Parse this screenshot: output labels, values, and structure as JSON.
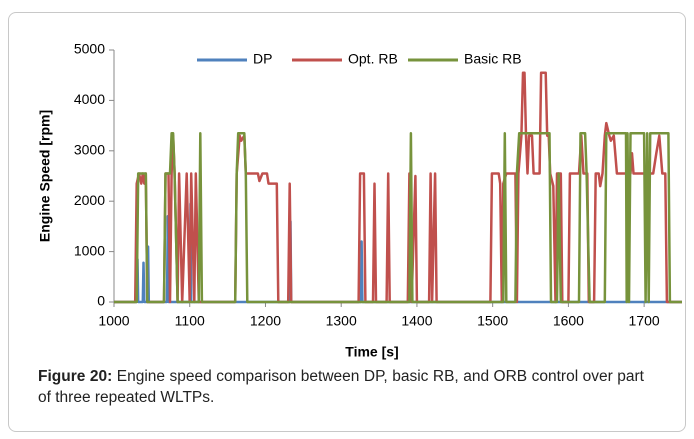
{
  "chart_data": {
    "type": "line",
    "xlabel": "Time [s]",
    "ylabel": "Engine Speed [rpm]",
    "xlim": [
      1000,
      1750
    ],
    "xticks": [
      1000,
      1100,
      1200,
      1300,
      1400,
      1500,
      1600,
      1700
    ],
    "ylim": [
      0,
      5000
    ],
    "yticks": [
      0,
      1000,
      2000,
      3000,
      4000,
      5000
    ],
    "grid": false,
    "legend": "top",
    "series": [
      {
        "name": "DP",
        "color": "#4f81bd",
        "x": [
          1000,
          1030,
          1031,
          1032,
          1038,
          1039,
          1040,
          1044,
          1045,
          1046,
          1070,
          1071,
          1072,
          1100,
          1101,
          1102,
          1232,
          1233,
          1234,
          1326,
          1327,
          1328,
          1750
        ],
        "values": [
          0,
          0,
          850,
          0,
          0,
          780,
          0,
          0,
          1100,
          0,
          0,
          1700,
          0,
          0,
          1950,
          0,
          0,
          1600,
          0,
          0,
          1200,
          0,
          0
        ]
      },
      {
        "name": "Opt. RB",
        "color": "#c0504d",
        "x": [
          1000,
          1028,
          1030,
          1033,
          1036,
          1038,
          1040,
          1042,
          1044,
          1066,
          1068,
          1072,
          1074,
          1076,
          1078,
          1080,
          1084,
          1086,
          1090,
          1096,
          1100,
          1102,
          1106,
          1108,
          1112,
          1160,
          1162,
          1166,
          1168,
          1172,
          1174,
          1190,
          1192,
          1196,
          1202,
          1204,
          1215,
          1217,
          1230,
          1232,
          1234,
          1323,
          1325,
          1330,
          1332,
          1342,
          1344,
          1346,
          1360,
          1362,
          1364,
          1388,
          1390,
          1393,
          1398,
          1400,
          1416,
          1418,
          1420,
          1424,
          1426,
          1497,
          1499,
          1508,
          1510,
          1512,
          1514,
          1518,
          1530,
          1532,
          1534,
          1538,
          1540,
          1542,
          1544,
          1546,
          1548,
          1552,
          1554,
          1562,
          1564,
          1570,
          1572,
          1574,
          1576,
          1580,
          1583,
          1585,
          1590,
          1592,
          1600,
          1602,
          1614,
          1617,
          1620,
          1625,
          1627,
          1634,
          1636,
          1640,
          1642,
          1645,
          1648,
          1650,
          1654,
          1656,
          1660,
          1664,
          1682,
          1684,
          1686,
          1712,
          1716,
          1720,
          1724,
          1728,
          1730,
          1750
        ],
        "values": [
          0,
          0,
          2350,
          2550,
          2350,
          2550,
          2350,
          2550,
          0,
          0,
          2550,
          2550,
          0,
          2550,
          3300,
          2550,
          0,
          2550,
          0,
          2550,
          0,
          2550,
          0,
          2550,
          0,
          0,
          2550,
          3300,
          3200,
          3300,
          2550,
          2550,
          2400,
          2550,
          2550,
          2350,
          2350,
          0,
          0,
          2350,
          0,
          0,
          2550,
          2550,
          0,
          0,
          2350,
          0,
          0,
          2550,
          0,
          0,
          2550,
          0,
          2500,
          0,
          0,
          2550,
          0,
          2550,
          0,
          0,
          2550,
          2550,
          2350,
          0,
          2350,
          2550,
          2550,
          0,
          2550,
          3300,
          4550,
          4550,
          3300,
          2550,
          3300,
          3300,
          2550,
          2550,
          4550,
          4550,
          3300,
          3300,
          2550,
          2300,
          0,
          2550,
          2550,
          0,
          0,
          2550,
          2550,
          3300,
          2550,
          2550,
          0,
          0,
          2550,
          2550,
          2300,
          2550,
          3300,
          3550,
          3300,
          3200,
          3300,
          2550,
          2550,
          2950,
          2550,
          2550,
          2950,
          3300,
          2550,
          2550,
          0,
          0
        ]
      },
      {
        "name": "Basic RB",
        "color": "#77933c",
        "x": [
          1000,
          1030,
          1032,
          1042,
          1044,
          1066,
          1068,
          1074,
          1076,
          1078,
          1080,
          1084,
          1112,
          1114,
          1116,
          1160,
          1162,
          1164,
          1172,
          1174,
          1176,
          1390,
          1392,
          1394,
          1514,
          1516,
          1518,
          1530,
          1532,
          1535,
          1575,
          1577,
          1585,
          1587,
          1590,
          1614,
          1616,
          1622,
          1624,
          1628,
          1648,
          1650,
          1676,
          1677,
          1678,
          1680,
          1682,
          1700,
          1702,
          1704,
          1706,
          1708,
          1732,
          1734,
          1750
        ],
        "values": [
          0,
          0,
          2550,
          2550,
          0,
          0,
          2550,
          2550,
          3350,
          3350,
          2550,
          0,
          0,
          3350,
          0,
          0,
          2550,
          3350,
          3350,
          2550,
          0,
          0,
          3350,
          0,
          0,
          3350,
          0,
          0,
          2550,
          3350,
          3350,
          0,
          0,
          2550,
          0,
          0,
          3350,
          3350,
          2550,
          0,
          0,
          3350,
          3350,
          0,
          3350,
          0,
          3350,
          3350,
          0,
          3350,
          0,
          3350,
          3350,
          0,
          0
        ]
      }
    ]
  },
  "figure": {
    "label": "Figure 20:",
    "caption": "Engine speed comparison between DP, basic RB, and ORB control over part of three repeated WLTPs."
  }
}
